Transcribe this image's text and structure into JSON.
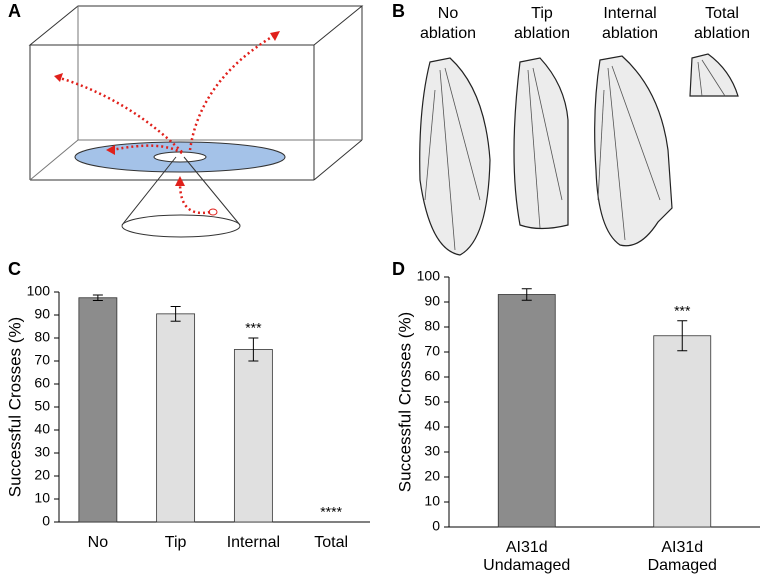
{
  "panels": [
    "A",
    "B",
    "C",
    "D"
  ],
  "wing_labels": [
    [
      "No",
      "ablation"
    ],
    [
      "Tip",
      "ablation"
    ],
    [
      "Internal",
      "ablation"
    ],
    [
      "Total",
      "ablation"
    ]
  ],
  "chart_data": [
    {
      "type": "bar",
      "y_label": "Successful Crosses (%)",
      "categories": [
        [
          "No"
        ],
        [
          "Tip"
        ],
        [
          "Internal"
        ],
        [
          "Total"
        ]
      ],
      "values": [
        97.5,
        90.5,
        75,
        0
      ],
      "errors": [
        1.2,
        3.2,
        5,
        null
      ],
      "significance": [
        null,
        null,
        "***",
        "****"
      ],
      "colors": [
        "#8c8c8c",
        "#e0e0e0",
        "#e0e0e0",
        "#e0e0e0"
      ],
      "ylim": [
        0,
        100
      ],
      "yticks": [
        0,
        10,
        20,
        30,
        40,
        50,
        60,
        70,
        80,
        90,
        100
      ]
    },
    {
      "type": "bar",
      "y_label": "Successful Crosses (%)",
      "categories": [
        [
          "AI31d",
          "Undamaged"
        ],
        [
          "AI31d",
          "Damaged"
        ]
      ],
      "values": [
        93,
        76.5
      ],
      "errors": [
        2.3,
        6
      ],
      "significance": [
        null,
        "***"
      ],
      "colors": [
        "#8c8c8c",
        "#e0e0e0"
      ],
      "ylim": [
        0,
        100
      ],
      "yticks": [
        0,
        10,
        20,
        30,
        40,
        50,
        60,
        70,
        80,
        90,
        100
      ]
    }
  ]
}
